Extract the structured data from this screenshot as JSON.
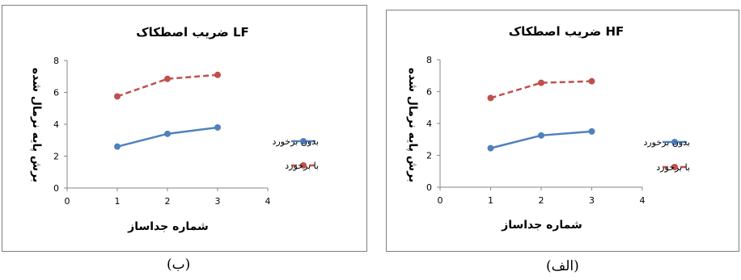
{
  "chart_data": [
    {
      "type": "line",
      "title": "ضریب اصطکاک LF",
      "xlabel": "شماره جداساز",
      "ylabel": "برش پایه نرمال شده",
      "xlim": [
        0,
        4
      ],
      "ylim": [
        0,
        8
      ],
      "xticks": [
        0,
        1,
        2,
        3,
        4
      ],
      "yticks": [
        0,
        2,
        4,
        6,
        8
      ],
      "legend_position": "right",
      "grid": false,
      "series": [
        {
          "name": "بدون برخورد",
          "x": [
            1,
            2,
            3
          ],
          "values": [
            2.6,
            3.4,
            3.8
          ],
          "color": "#4f81bd",
          "dash": "solid"
        },
        {
          "name": "با برخورد",
          "x": [
            1,
            2,
            3
          ],
          "values": [
            5.75,
            6.85,
            7.1
          ],
          "color": "#c0504d",
          "dash": "dashed"
        }
      ]
    },
    {
      "type": "line",
      "title": "ضریب اصطکاک HF",
      "xlabel": "شماره جداساز",
      "ylabel": "برش پایه نرمال شده",
      "xlim": [
        0,
        4
      ],
      "ylim": [
        0,
        8
      ],
      "xticks": [
        0,
        1,
        2,
        3,
        4
      ],
      "yticks": [
        0,
        2,
        4,
        6,
        8
      ],
      "legend_position": "right",
      "grid": false,
      "series": [
        {
          "name": "بدون برخورد",
          "x": [
            1,
            2,
            3
          ],
          "values": [
            2.45,
            3.25,
            3.5
          ],
          "color": "#4f81bd",
          "dash": "solid"
        },
        {
          "name": "با برخورد",
          "x": [
            1,
            2,
            3
          ],
          "values": [
            5.6,
            6.55,
            6.65
          ],
          "color": "#c0504d",
          "dash": "dashed"
        }
      ]
    }
  ],
  "captions": {
    "left": "(ب)",
    "right": "(الف)"
  }
}
